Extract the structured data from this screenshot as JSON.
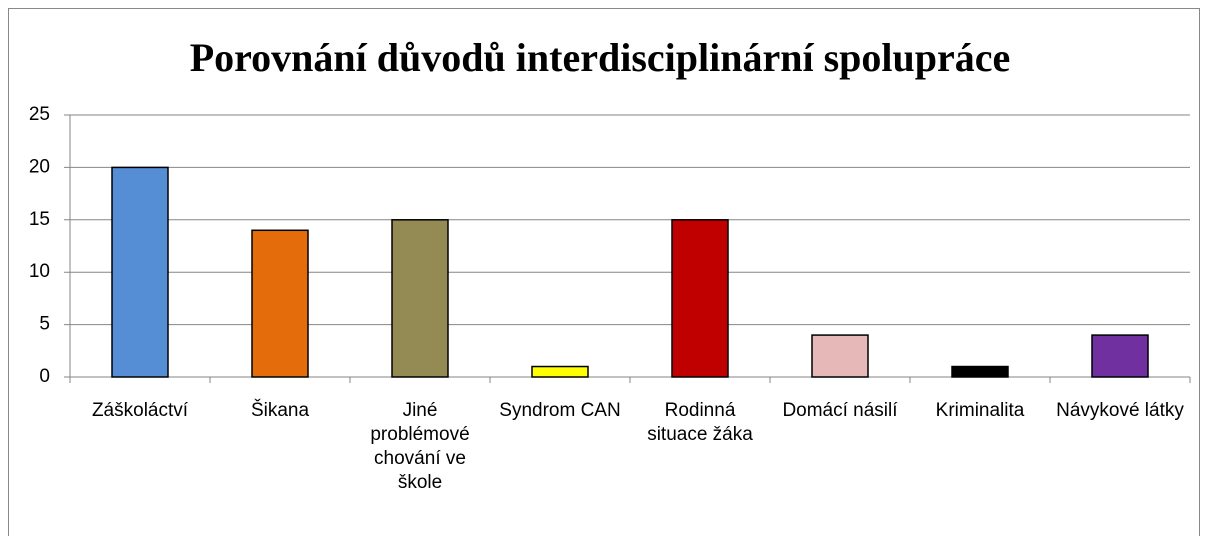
{
  "chart_data": {
    "type": "bar",
    "title": "Porovnání důvodů interdisciplinární spolupráce",
    "categories": [
      "Záškoláctví",
      "Šikana",
      "Jiné problémové chování ve škole",
      "Syndrom CAN",
      "Rodinná situace žáka",
      "Domácí násilí",
      "Kriminalita",
      "Návykové látky"
    ],
    "values": [
      20,
      14,
      15,
      1,
      15,
      4,
      1,
      4
    ],
    "colors": [
      "#558ed5",
      "#e46c0a",
      "#948a54",
      "#ffff00",
      "#c00000",
      "#e6b9b8",
      "#000000",
      "#7030a0"
    ],
    "ylim": [
      0,
      25
    ],
    "yticks": [
      0,
      5,
      10,
      15,
      20,
      25
    ],
    "grid": true
  }
}
